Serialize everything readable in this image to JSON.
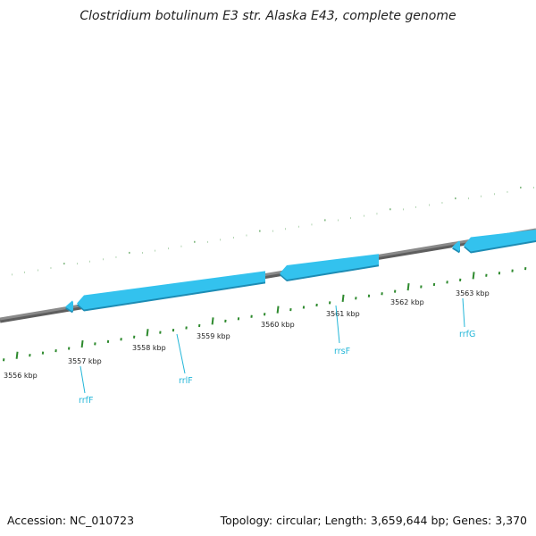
{
  "title": "Clostridium botulinum E3 str. Alaska E43, complete genome",
  "footer": {
    "accession": "Accession: NC_010723",
    "summary": "Topology: circular; Length: 3,659,644 bp; Genes: 3,370"
  },
  "colors": {
    "backbone": "#8a8a8a",
    "gene": "#33c2ee",
    "gene_shadow": "#1d8cb4",
    "tick": "#2e8a2e",
    "gene_label": "#23b6d8"
  },
  "scale": {
    "labels": [
      "3556 kbp",
      "3557 kbp",
      "3558 kbp",
      "3559 kbp",
      "3560 kbp",
      "3561 kbp",
      "3562 kbp",
      "3563 kbp"
    ]
  },
  "genes": [
    {
      "name": "rrfF",
      "strand": "reverse"
    },
    {
      "name": "rrlF",
      "strand": "reverse"
    },
    {
      "name": "rrsF",
      "strand": "reverse"
    },
    {
      "name": "rrfG",
      "strand": "reverse"
    }
  ]
}
